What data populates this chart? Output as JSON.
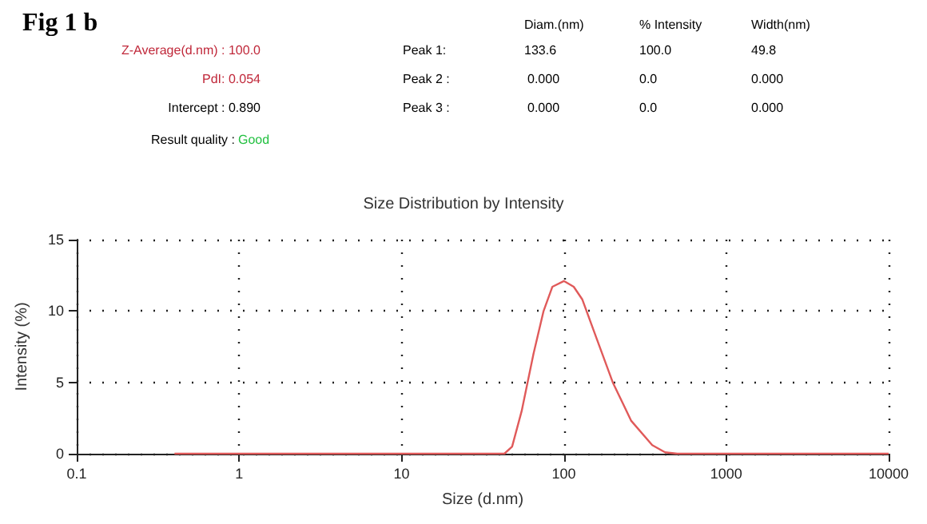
{
  "chart_data": {
    "type": "line",
    "title": "Size Distribution by Intensity",
    "xlabel": "Size (d.nm)",
    "ylabel": "Intensity (%)",
    "annotations": [
      "Fig 1 b",
      "Z-Average(d.nm) : 100.0",
      "PdI: 0.054",
      "Intercept : 0.890",
      "Result quality :",
      "Good",
      "Diam.(nm)",
      "% Intensity",
      "Width(nm)",
      "Peak 1:",
      "133.6",
      "100.0",
      "49.8",
      "Peak 2 :",
      "0.000",
      "0.0",
      "0.000",
      "Peak 3 :",
      "0.000",
      "0.0",
      "0.000"
    ],
    "x": [
      0.4,
      43,
      48,
      55,
      65,
      75,
      85,
      100,
      115,
      130,
      160,
      200,
      260,
      350,
      420,
      500,
      10000
    ],
    "series": [
      {
        "color": "#e05a5a",
        "values": [
          0,
          0,
          0.5,
          3,
          7,
          10,
          11.7,
          12.1,
          11.7,
          10.8,
          8,
          5,
          2.3,
          0.6,
          0.1,
          0,
          0
        ]
      }
    ],
    "xlim": [
      0.1,
      10000
    ],
    "xticks": [
      0.1,
      1,
      10,
      100,
      1000,
      10000
    ],
    "ylim": [
      0,
      15
    ],
    "yticks": [
      0,
      5,
      10,
      15
    ],
    "log": "x",
    "grid": true,
    "marker": "none",
    "line_style": "solid"
  }
}
